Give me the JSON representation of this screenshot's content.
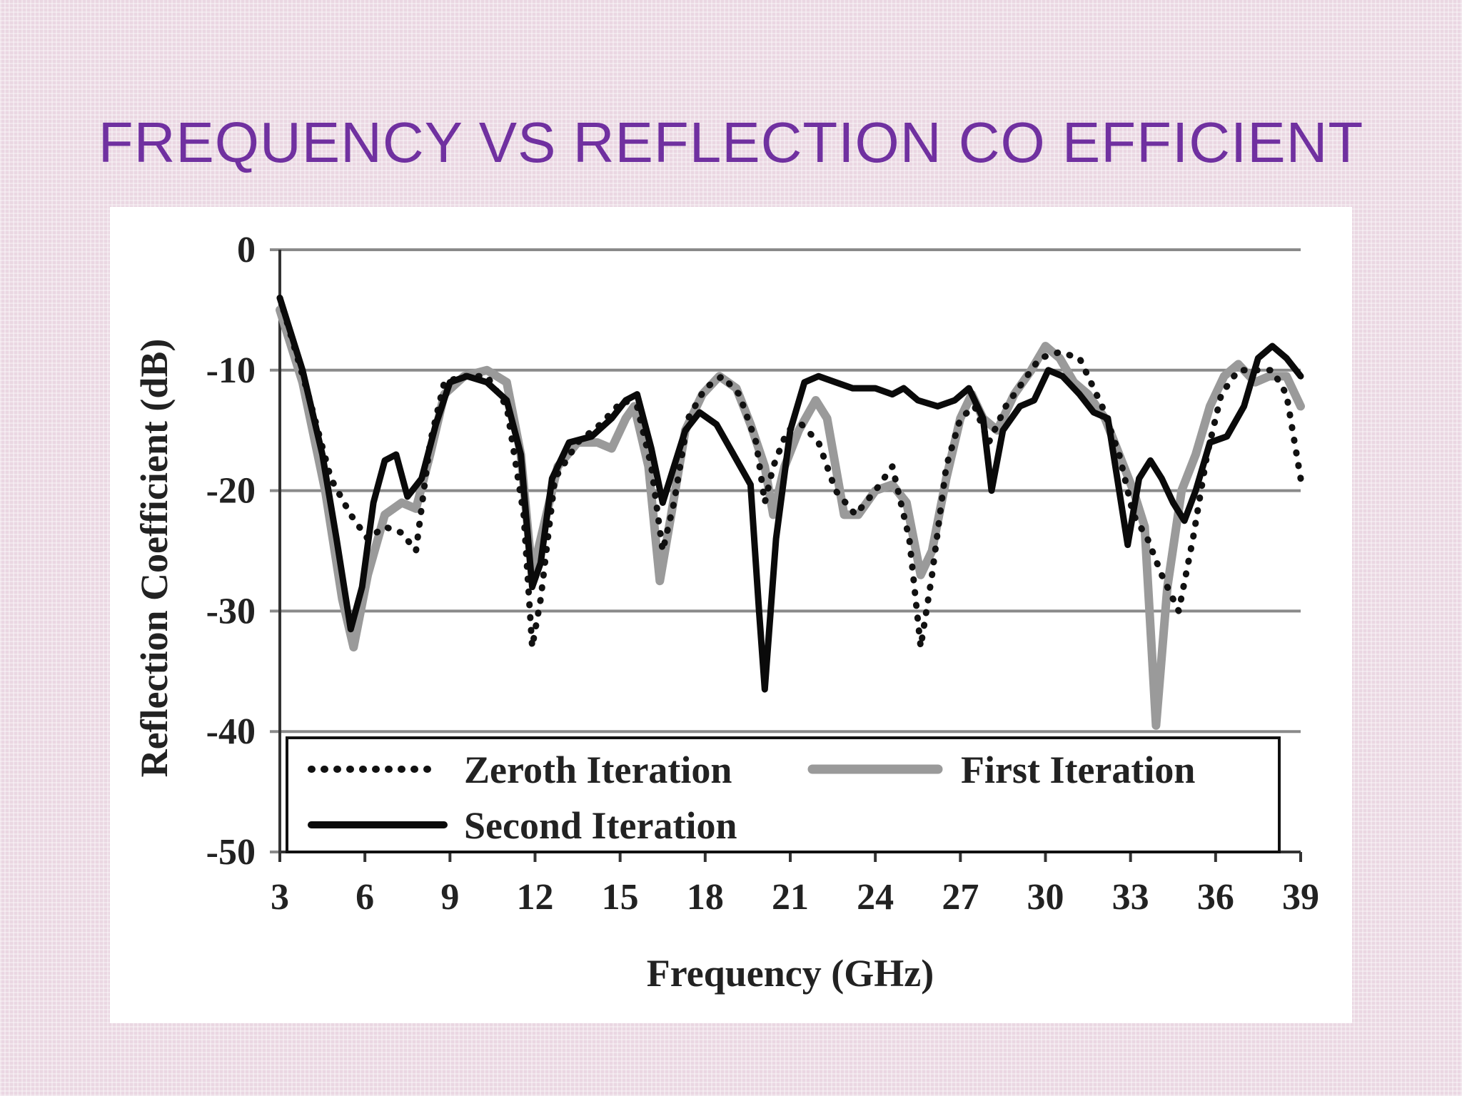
{
  "slide": {
    "title": "FREQUENCY VS REFLECTION CO EFFICIENT"
  },
  "chart_data": {
    "type": "line",
    "xlabel": "Frequency (GHz)",
    "ylabel": "Reflection Coefficient (dB)",
    "xlim": [
      3,
      39
    ],
    "ylim": [
      -50,
      0
    ],
    "xticks": [
      "3",
      "6",
      "9",
      "12",
      "15",
      "18",
      "21",
      "24",
      "27",
      "30",
      "33",
      "36",
      "39"
    ],
    "yticks": [
      "0",
      "-10",
      "-20",
      "-30",
      "-40",
      "-50"
    ],
    "grid": "horizontal",
    "legend": "bottom-inside",
    "series": [
      {
        "name": "Zeroth Iteration",
        "style": "dotted",
        "color": "#111111",
        "points": [
          [
            3,
            -4
          ],
          [
            4,
            -12
          ],
          [
            4.8,
            -19
          ],
          [
            5.5,
            -22
          ],
          [
            6.1,
            -24
          ],
          [
            6.7,
            -23
          ],
          [
            7.3,
            -23.5
          ],
          [
            7.8,
            -25
          ],
          [
            8.3,
            -16
          ],
          [
            8.8,
            -11
          ],
          [
            9.5,
            -10.5
          ],
          [
            10.3,
            -10.5
          ],
          [
            11,
            -13
          ],
          [
            11.6,
            -22
          ],
          [
            11.9,
            -33
          ],
          [
            12.2,
            -29
          ],
          [
            12.7,
            -19
          ],
          [
            13.5,
            -16
          ],
          [
            14.3,
            -14.5
          ],
          [
            15.1,
            -12.5
          ],
          [
            15.6,
            -13
          ],
          [
            16.1,
            -18
          ],
          [
            16.5,
            -25
          ],
          [
            16.9,
            -21
          ],
          [
            17.4,
            -14
          ],
          [
            18,
            -11.5
          ],
          [
            18.6,
            -10.5
          ],
          [
            19.2,
            -12
          ],
          [
            19.8,
            -16
          ],
          [
            20.1,
            -21
          ],
          [
            20.4,
            -18
          ],
          [
            20.9,
            -15
          ],
          [
            21.4,
            -14.5
          ],
          [
            22,
            -16
          ],
          [
            22.6,
            -20
          ],
          [
            23.3,
            -22
          ],
          [
            24,
            -20
          ],
          [
            24.6,
            -18
          ],
          [
            25.2,
            -24
          ],
          [
            25.6,
            -33
          ],
          [
            26,
            -27
          ],
          [
            26.5,
            -18
          ],
          [
            27,
            -14
          ],
          [
            27.5,
            -13
          ],
          [
            28,
            -16
          ],
          [
            28.6,
            -13
          ],
          [
            29.2,
            -11
          ],
          [
            29.8,
            -9
          ],
          [
            30.5,
            -8.5
          ],
          [
            31.2,
            -9
          ],
          [
            32,
            -13
          ],
          [
            32.6,
            -17
          ],
          [
            33.1,
            -22
          ],
          [
            33.6,
            -24
          ],
          [
            34.1,
            -27
          ],
          [
            34.7,
            -30
          ],
          [
            35.2,
            -24
          ],
          [
            35.7,
            -17
          ],
          [
            36.2,
            -12
          ],
          [
            36.8,
            -10
          ],
          [
            37.4,
            -10
          ],
          [
            38,
            -10
          ],
          [
            38.5,
            -12
          ],
          [
            39,
            -19
          ]
        ]
      },
      {
        "name": "First Iteration",
        "style": "solid",
        "color": "#9a9a9a",
        "points": [
          [
            3,
            -5
          ],
          [
            3.8,
            -11
          ],
          [
            4.6,
            -20
          ],
          [
            5.2,
            -29
          ],
          [
            5.6,
            -33
          ],
          [
            6.1,
            -27
          ],
          [
            6.7,
            -22
          ],
          [
            7.3,
            -21
          ],
          [
            7.8,
            -21.5
          ],
          [
            8.3,
            -17
          ],
          [
            8.8,
            -12
          ],
          [
            9.5,
            -10.5
          ],
          [
            10.3,
            -10
          ],
          [
            11,
            -11
          ],
          [
            11.5,
            -17
          ],
          [
            11.9,
            -27
          ],
          [
            12.3,
            -23
          ],
          [
            12.8,
            -18
          ],
          [
            13.5,
            -16
          ],
          [
            14.2,
            -16
          ],
          [
            14.7,
            -16.5
          ],
          [
            15.2,
            -14
          ],
          [
            15.5,
            -13
          ],
          [
            16,
            -18
          ],
          [
            16.4,
            -27.5
          ],
          [
            16.8,
            -22
          ],
          [
            17.3,
            -15
          ],
          [
            17.9,
            -12
          ],
          [
            18.5,
            -10.5
          ],
          [
            19.1,
            -11.5
          ],
          [
            19.6,
            -14.5
          ],
          [
            20.1,
            -18
          ],
          [
            20.4,
            -22
          ],
          [
            20.8,
            -18
          ],
          [
            21.3,
            -15
          ],
          [
            21.9,
            -12.5
          ],
          [
            22.3,
            -14
          ],
          [
            22.9,
            -22
          ],
          [
            23.4,
            -22
          ],
          [
            24,
            -20
          ],
          [
            24.6,
            -19.5
          ],
          [
            25.1,
            -21
          ],
          [
            25.6,
            -27
          ],
          [
            26,
            -25
          ],
          [
            26.5,
            -19
          ],
          [
            27,
            -14
          ],
          [
            27.4,
            -12
          ],
          [
            27.8,
            -14
          ],
          [
            28.3,
            -15
          ],
          [
            28.9,
            -12
          ],
          [
            29.5,
            -10
          ],
          [
            30,
            -8
          ],
          [
            30.5,
            -9
          ],
          [
            31,
            -11
          ],
          [
            31.5,
            -12
          ],
          [
            32.1,
            -14
          ],
          [
            32.6,
            -17
          ],
          [
            33.1,
            -20
          ],
          [
            33.5,
            -23
          ],
          [
            33.9,
            -39.5
          ],
          [
            34.3,
            -28
          ],
          [
            34.8,
            -20
          ],
          [
            35.3,
            -17
          ],
          [
            35.8,
            -13
          ],
          [
            36.3,
            -10.5
          ],
          [
            36.8,
            -9.5
          ],
          [
            37.4,
            -11
          ],
          [
            37.9,
            -10.5
          ],
          [
            38.5,
            -10.5
          ],
          [
            39,
            -13
          ]
        ]
      },
      {
        "name": "Second Iteration",
        "style": "solid",
        "color": "#0a0a0a",
        "points": [
          [
            3,
            -4
          ],
          [
            3.8,
            -10
          ],
          [
            4.5,
            -17
          ],
          [
            5,
            -24
          ],
          [
            5.5,
            -31.5
          ],
          [
            5.9,
            -28
          ],
          [
            6.3,
            -21
          ],
          [
            6.7,
            -17.5
          ],
          [
            7.1,
            -17
          ],
          [
            7.5,
            -20.5
          ],
          [
            8,
            -19
          ],
          [
            8.5,
            -14.5
          ],
          [
            9,
            -11
          ],
          [
            9.6,
            -10.5
          ],
          [
            10.3,
            -11
          ],
          [
            11,
            -12.5
          ],
          [
            11.5,
            -17
          ],
          [
            11.9,
            -28
          ],
          [
            12.2,
            -26
          ],
          [
            12.6,
            -19
          ],
          [
            13.2,
            -16
          ],
          [
            14,
            -15.5
          ],
          [
            14.7,
            -14
          ],
          [
            15.2,
            -12.5
          ],
          [
            15.6,
            -12
          ],
          [
            16.1,
            -16.5
          ],
          [
            16.5,
            -21
          ],
          [
            16.9,
            -18
          ],
          [
            17.3,
            -15
          ],
          [
            17.8,
            -13.5
          ],
          [
            18.4,
            -14.5
          ],
          [
            19,
            -17
          ],
          [
            19.6,
            -19.5
          ],
          [
            19.9,
            -30
          ],
          [
            20.1,
            -36.5
          ],
          [
            20.5,
            -24
          ],
          [
            21,
            -15
          ],
          [
            21.5,
            -11
          ],
          [
            22,
            -10.5
          ],
          [
            22.6,
            -11
          ],
          [
            23.2,
            -11.5
          ],
          [
            24,
            -11.5
          ],
          [
            24.6,
            -12
          ],
          [
            25,
            -11.5
          ],
          [
            25.5,
            -12.5
          ],
          [
            26.2,
            -13
          ],
          [
            26.8,
            -12.5
          ],
          [
            27.3,
            -11.5
          ],
          [
            27.8,
            -14
          ],
          [
            28.1,
            -20
          ],
          [
            28.5,
            -15
          ],
          [
            29.1,
            -13
          ],
          [
            29.6,
            -12.5
          ],
          [
            30.1,
            -10
          ],
          [
            30.6,
            -10.5
          ],
          [
            31.2,
            -12
          ],
          [
            31.7,
            -13.5
          ],
          [
            32.2,
            -14
          ],
          [
            32.6,
            -20
          ],
          [
            32.9,
            -24.5
          ],
          [
            33.3,
            -19
          ],
          [
            33.7,
            -17.5
          ],
          [
            34.1,
            -19
          ],
          [
            34.5,
            -21
          ],
          [
            34.9,
            -22.5
          ],
          [
            35.3,
            -20
          ],
          [
            35.8,
            -16
          ],
          [
            36.4,
            -15.5
          ],
          [
            37,
            -13
          ],
          [
            37.5,
            -9
          ],
          [
            38,
            -8
          ],
          [
            38.5,
            -9
          ],
          [
            39,
            -10.5
          ]
        ]
      }
    ]
  }
}
